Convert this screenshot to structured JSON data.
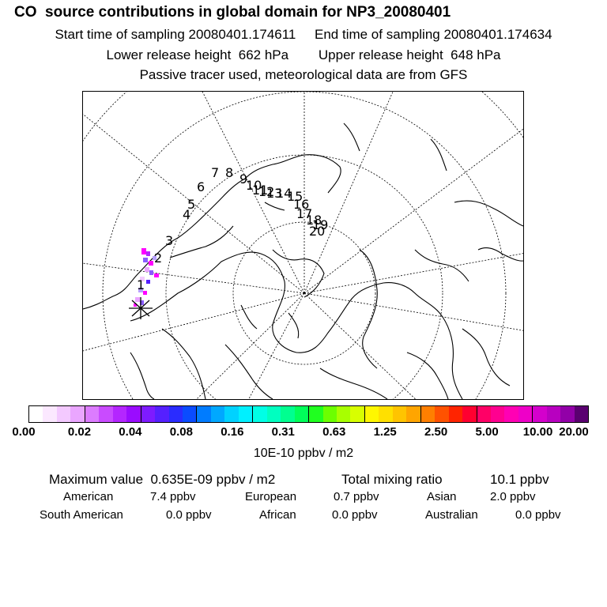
{
  "header": {
    "title": "CO  source contributions in global domain for NP3_20080401",
    "sampling_line": "Start time of sampling 20080401.174611     End time of sampling 20080401.174634",
    "release_line": "Lower release height  662 hPa        Upper release height  648 hPa",
    "tracer_line": "Passive tracer used, meteorological data are from GFS"
  },
  "map": {
    "projection": "north-polar stereographic",
    "track_labels": [
      "1",
      "2",
      "3",
      "4",
      "5",
      "6",
      "7",
      "8",
      "9",
      "10",
      "11",
      "12",
      "13",
      "14",
      "15",
      "16",
      "17",
      "18",
      "19",
      "20"
    ],
    "release_marker": "star",
    "colors": {
      "coast": "#000000",
      "grid": "#000000",
      "plume_high": "#ff00ff",
      "plume_mid": "#8a5cff",
      "plume_low": "#b7a0ff"
    }
  },
  "colorbar": {
    "colors": [
      "#ffffff",
      "#fbe8ff",
      "#f3c9ff",
      "#eaa6ff",
      "#dc7cff",
      "#c94bff",
      "#b426ff",
      "#9a0cff",
      "#7e1bff",
      "#5520ff",
      "#2a2cff",
      "#0a4cff",
      "#007cff",
      "#00a8ff",
      "#00d2ff",
      "#00f0ff",
      "#00ffe6",
      "#00ffc0",
      "#00ff90",
      "#00ff5a",
      "#20ff20",
      "#6cff00",
      "#a8ff00",
      "#d8ff00",
      "#fff700",
      "#ffe000",
      "#ffc400",
      "#ffa500",
      "#ff7f00",
      "#ff5200",
      "#ff2400",
      "#ff0030",
      "#ff0066",
      "#ff0090",
      "#ff00b4",
      "#ee00c8",
      "#d400cc",
      "#b800c0",
      "#9200a8",
      "#5a0070"
    ],
    "ticks": [
      "0.00",
      "0.02",
      "0.04",
      "0.08",
      "0.16",
      "0.31",
      "0.63",
      "1.25",
      "2.50",
      "5.00",
      "10.00",
      "20.00"
    ],
    "unit": "10E-10 ppbv / m2"
  },
  "stats": {
    "max_label": "Maximum value  0.635E-09 ppbv / m2",
    "total_label": "Total mixing ratio",
    "total_value": "10.1 ppbv",
    "regions": [
      {
        "name": "American",
        "value": "7.4 ppbv"
      },
      {
        "name": "European",
        "value": "0.7 ppbv"
      },
      {
        "name": "Asian",
        "value": "2.0 ppbv"
      },
      {
        "name": "South American",
        "value": "0.0 ppbv"
      },
      {
        "name": "African",
        "value": "0.0 ppbv"
      },
      {
        "name": "Australian",
        "value": "0.0 ppbv"
      }
    ]
  }
}
